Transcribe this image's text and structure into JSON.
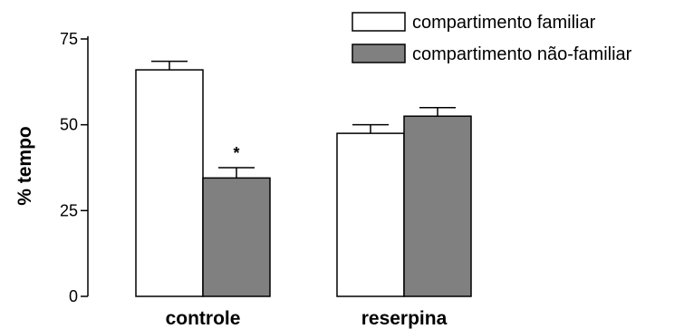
{
  "chart_data": {
    "type": "bar",
    "ylabel": "% tempo",
    "ylim": [
      0,
      75
    ],
    "yticks": [
      0,
      25,
      50,
      75
    ],
    "categories": [
      "controle",
      "reserpina"
    ],
    "series": [
      {
        "name": "compartimento familiar",
        "values": [
          66,
          47.5
        ],
        "errors": [
          2.5,
          2.5
        ],
        "color": "#ffffff"
      },
      {
        "name": "compartimento não-familiar",
        "values": [
          34.5,
          52.5
        ],
        "errors": [
          3,
          2.5
        ],
        "color": "#808080"
      }
    ],
    "annotations": [
      {
        "text": "*",
        "category": "controle",
        "series": "compartimento não-familiar"
      }
    ],
    "legend_position": "top-right",
    "grid": false
  }
}
